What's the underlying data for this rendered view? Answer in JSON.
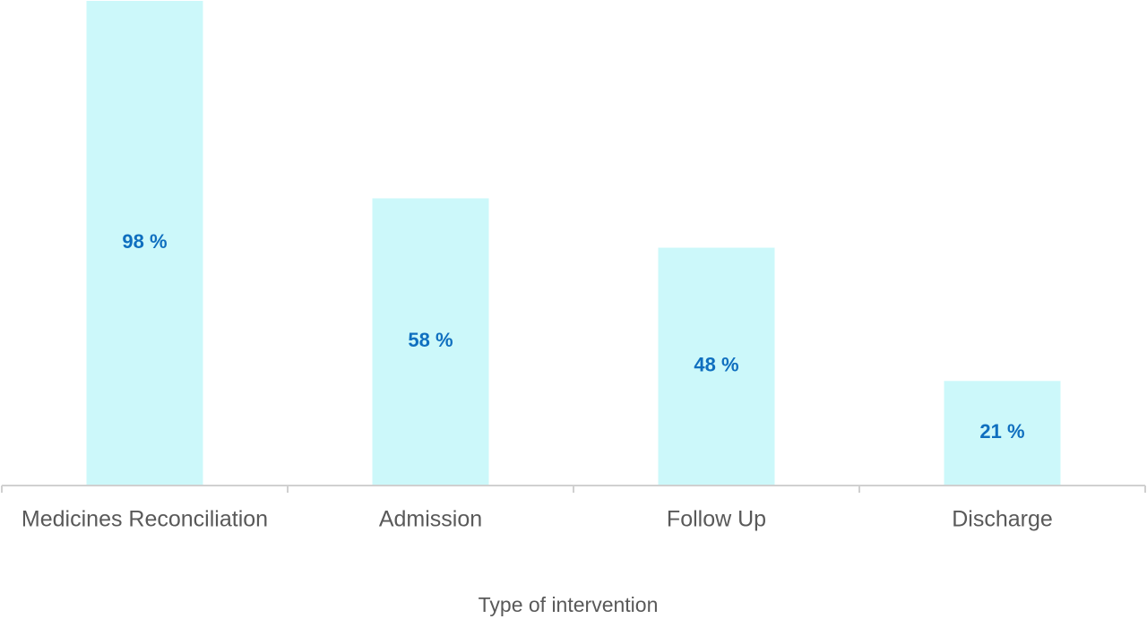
{
  "chart_data": {
    "type": "bar",
    "x_label": "Type of intervention",
    "categories": [
      "Medicines Reconciliation",
      "Admission",
      "Follow Up",
      "Discharge"
    ],
    "values": [
      98,
      58,
      48,
      21
    ],
    "value_labels": [
      "98 %",
      "58 %",
      "48 %",
      "21 %"
    ],
    "color": "#ccf8fa",
    "label_color": "#0f6fbf"
  }
}
